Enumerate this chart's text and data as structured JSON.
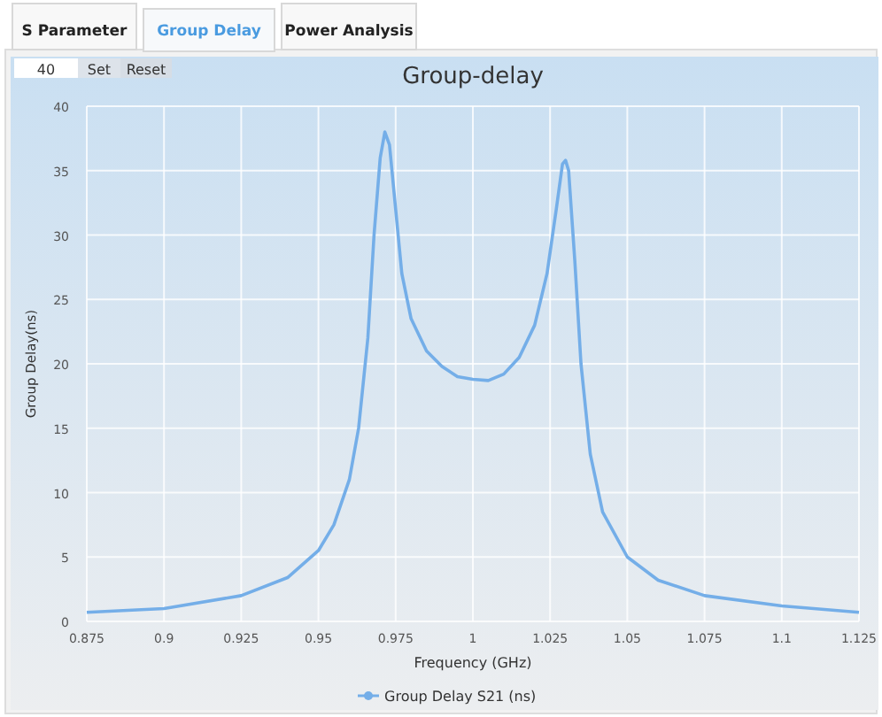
{
  "chart_data": {
    "type": "line",
    "title": "Group-delay",
    "xlabel": "Frequency (GHz)",
    "ylabel": "Group Delay(ns)",
    "annotations": [
      "S Parameter",
      "Group Delay",
      "Power Analysis",
      "40",
      "Set",
      "Reset"
    ],
    "x": [
      0.875,
      0.9,
      0.925,
      0.94,
      0.95,
      0.955,
      0.96,
      0.963,
      0.966,
      0.968,
      0.97,
      0.9715,
      0.973,
      0.975,
      0.977,
      0.98,
      0.985,
      0.99,
      0.995,
      1.0,
      1.005,
      1.01,
      1.015,
      1.02,
      1.024,
      1.027,
      1.029,
      1.03,
      1.031,
      1.033,
      1.035,
      1.038,
      1.042,
      1.05,
      1.06,
      1.075,
      1.1,
      1.125
    ],
    "series": [
      {
        "name": "Group Delay S21 (ns)",
        "color": "#74aee8",
        "values": [
          0.7,
          1.0,
          2.0,
          3.4,
          5.5,
          7.5,
          11,
          15,
          22,
          30,
          36,
          38,
          37,
          32,
          27,
          23.5,
          21,
          19.8,
          19,
          18.8,
          18.7,
          19.2,
          20.5,
          23,
          27,
          32,
          35.5,
          35.8,
          35,
          28,
          20,
          13,
          8.5,
          5.0,
          3.2,
          2.0,
          1.2,
          0.7
        ]
      }
    ],
    "xlim": [
      0.875,
      1.125
    ],
    "xticks": [
      0.875,
      0.9,
      0.925,
      0.95,
      0.975,
      1,
      1.025,
      1.05,
      1.075,
      1.1,
      1.125
    ],
    "ylim": [
      0,
      40
    ],
    "yticks": [
      0,
      5,
      10,
      15,
      20,
      25,
      30,
      35,
      40
    ],
    "grid": true,
    "legend": "bottom",
    "marker": "none",
    "line_style": "solid"
  }
}
